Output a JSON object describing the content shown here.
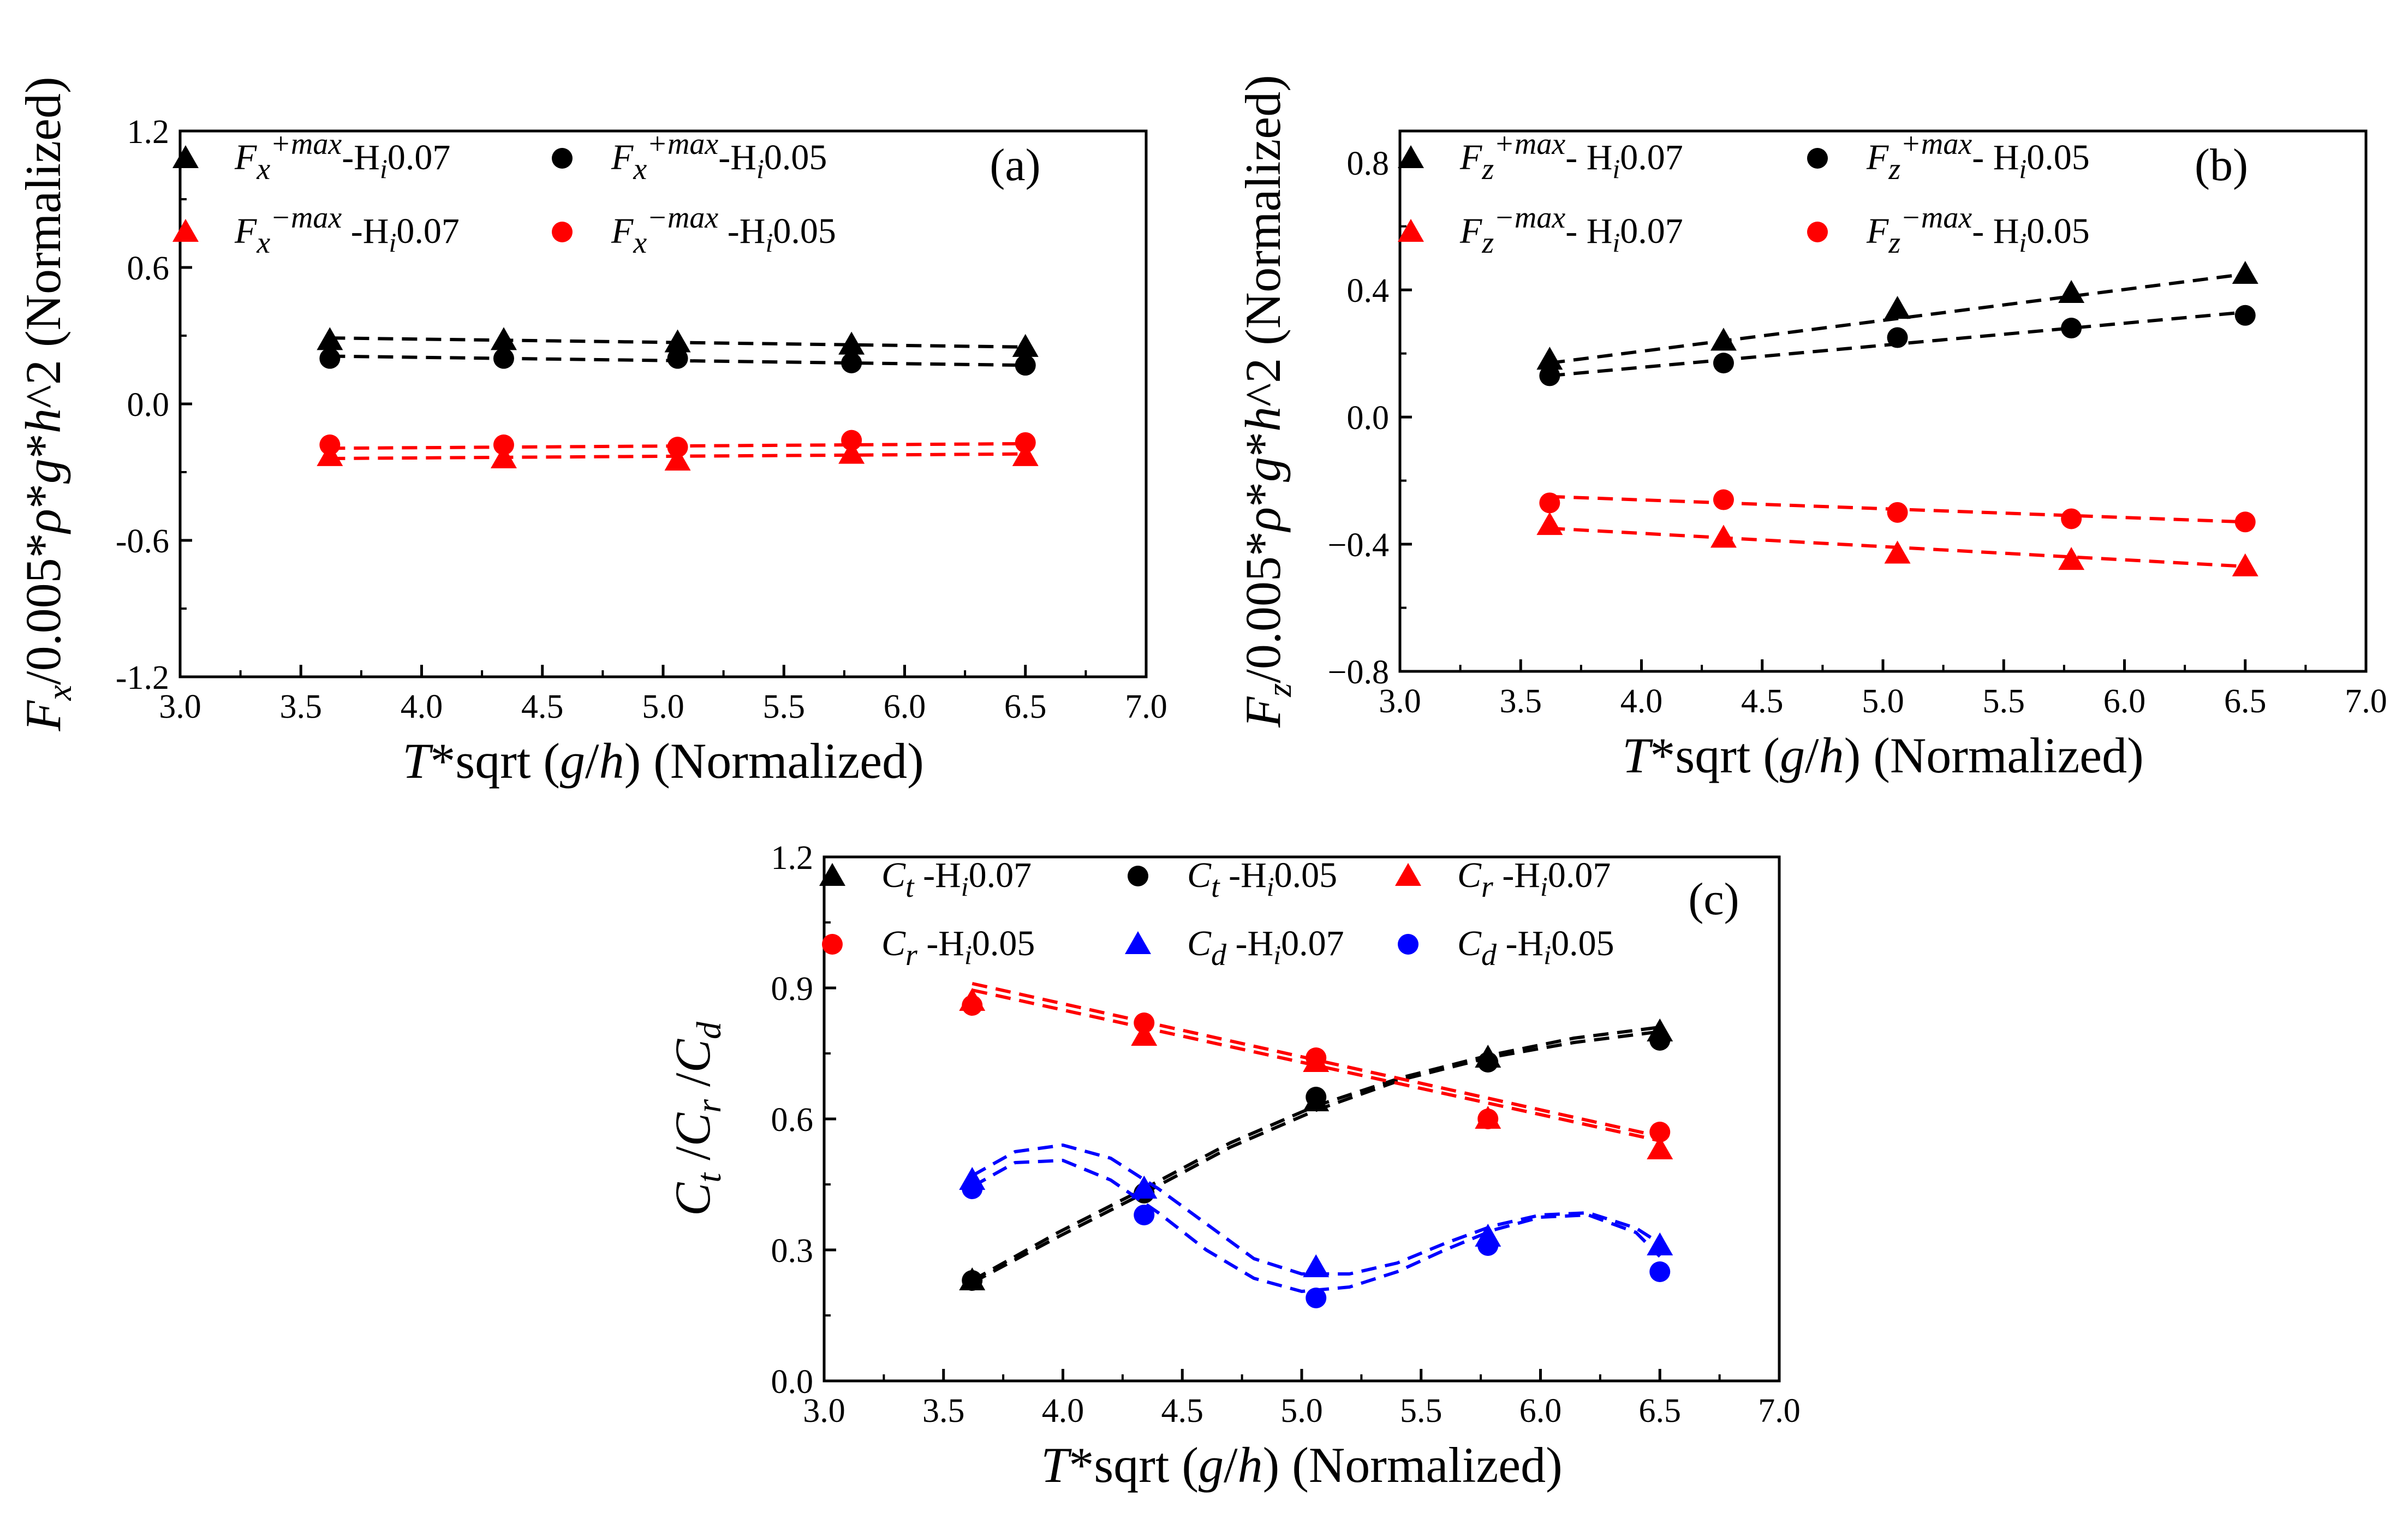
{
  "chart_data": [
    {
      "id": "a",
      "type": "scatter",
      "panel_label": "(a)",
      "xlabel": "T*sqrt (g/h) (Normalized)",
      "ylabel": "Fx/0.005*ρ*g*h^2 (Normalized)",
      "xlim": [
        3.0,
        7.0
      ],
      "ylim": [
        -1.2,
        1.2
      ],
      "xticks": [
        "3.0",
        "3.5",
        "4.0",
        "4.5",
        "5.0",
        "5.5",
        "6.0",
        "6.5",
        "7.0"
      ],
      "yticks": [
        "-1.2",
        "-0.6",
        "0.0",
        "0.6",
        "1.2"
      ],
      "x": [
        3.62,
        4.34,
        5.06,
        5.78,
        6.5
      ],
      "legend_position": "top",
      "series": [
        {
          "name": "Fx+max-Hi0.07",
          "legend": {
            "base": "F",
            "sub": "x",
            "sup": "+max",
            "rest": "-H",
            "hsub": "i",
            "val": "0.07"
          },
          "marker": "triangle",
          "color": "#000000",
          "values": [
            0.28,
            0.28,
            0.27,
            0.26,
            0.25
          ],
          "fit": [
            0.29,
            0.28,
            0.27,
            0.26,
            0.25
          ]
        },
        {
          "name": "Fx+max-Hi0.05",
          "legend": {
            "base": "F",
            "sub": "x",
            "sup": "+max",
            "rest": "-H",
            "hsub": "i",
            "val": "0.05"
          },
          "marker": "circle",
          "color": "#000000",
          "values": [
            0.2,
            0.2,
            0.2,
            0.18,
            0.17
          ],
          "fit": [
            0.21,
            0.2,
            0.19,
            0.18,
            0.17
          ]
        },
        {
          "name": "Fx−max-Hi0.07",
          "legend": {
            "base": "F",
            "sub": "x",
            "sup": "−max",
            "rest": " -H",
            "hsub": "i",
            "val": "0.07"
          },
          "marker": "triangle",
          "color": "#ff0000",
          "values": [
            -0.23,
            -0.24,
            -0.25,
            -0.22,
            -0.23
          ],
          "fit": [
            -0.24,
            -0.235,
            -0.23,
            -0.225,
            -0.22
          ]
        },
        {
          "name": "Fx−max-Hi0.05",
          "legend": {
            "base": "F",
            "sub": "x",
            "sup": "−max",
            "rest": " -H",
            "hsub": "i",
            "val": "0.05"
          },
          "marker": "circle",
          "color": "#ff0000",
          "values": [
            -0.18,
            -0.18,
            -0.19,
            -0.16,
            -0.17
          ],
          "fit": [
            -0.195,
            -0.19,
            -0.185,
            -0.18,
            -0.175
          ]
        }
      ]
    },
    {
      "id": "b",
      "type": "scatter",
      "panel_label": "(b)",
      "xlabel": "T*sqrt (g/h) (Normalized)",
      "ylabel": "Fz/0.005*ρ*g*h^2 (Normalized)",
      "xlim": [
        3.0,
        7.0
      ],
      "ylim": [
        -0.8,
        0.9
      ],
      "xticks": [
        "3.0",
        "3.5",
        "4.0",
        "4.5",
        "5.0",
        "5.5",
        "6.0",
        "6.5",
        "7.0"
      ],
      "yticks": [
        "−0.8",
        "−0.4",
        "0.0",
        "0.4",
        "0.8"
      ],
      "x": [
        3.62,
        4.34,
        5.06,
        5.78,
        6.5
      ],
      "legend_position": "top",
      "series": [
        {
          "name": "Fz+max- Hi0.07",
          "legend": {
            "base": "F",
            "sub": "z",
            "sup": "+max",
            "rest": "- H",
            "hsub": "i",
            "val": "0.07"
          },
          "marker": "triangle",
          "color": "#000000",
          "values": [
            0.18,
            0.24,
            0.34,
            0.39,
            0.45
          ],
          "fit": [
            0.17,
            0.24,
            0.31,
            0.38,
            0.45
          ]
        },
        {
          "name": "Fz+max- Hi0.05",
          "legend": {
            "base": "F",
            "sub": "z",
            "sup": "+max",
            "rest": "- H",
            "hsub": "i",
            "val": "0.05"
          },
          "marker": "circle",
          "color": "#000000",
          "values": [
            0.13,
            0.17,
            0.25,
            0.28,
            0.32
          ],
          "fit": [
            0.13,
            0.18,
            0.23,
            0.28,
            0.33
          ]
        },
        {
          "name": "Fz−max- Hi0.07",
          "legend": {
            "base": "F",
            "sub": "z",
            "sup": "−max",
            "rest": "- H",
            "hsub": "i",
            "val": "0.07"
          },
          "marker": "triangle",
          "color": "#ff0000",
          "values": [
            -0.34,
            -0.38,
            -0.43,
            -0.45,
            -0.47
          ],
          "fit": [
            -0.35,
            -0.38,
            -0.41,
            -0.44,
            -0.47
          ]
        },
        {
          "name": "Fz−max- Hi0.05",
          "legend": {
            "base": "F",
            "sub": "z",
            "sup": "−max",
            "rest": "- H",
            "hsub": "i",
            "val": "0.05"
          },
          "marker": "circle",
          "color": "#ff0000",
          "values": [
            -0.27,
            -0.26,
            -0.3,
            -0.32,
            -0.33
          ],
          "fit": [
            -0.25,
            -0.27,
            -0.29,
            -0.31,
            -0.33
          ]
        }
      ]
    },
    {
      "id": "c",
      "type": "scatter",
      "panel_label": "(c)",
      "xlabel": "T*sqrt (g/h) (Normalized)",
      "ylabel": "Ct /Cr /Cd",
      "xlim": [
        3.0,
        7.0
      ],
      "ylim": [
        0.0,
        1.2
      ],
      "xticks": [
        "3.0",
        "3.5",
        "4.0",
        "4.5",
        "5.0",
        "5.5",
        "6.0",
        "6.5",
        "7.0"
      ],
      "yticks": [
        "0.0",
        "0.3",
        "0.6",
        "0.9",
        "1.2"
      ],
      "x": [
        3.62,
        4.34,
        5.06,
        5.78,
        6.5
      ],
      "legend_position": "top",
      "series": [
        {
          "name": "Ct -Hi0.07",
          "legend": {
            "base": "C",
            "sub": "t",
            "sup": "",
            "rest": " -H",
            "hsub": "i",
            "val": "0.07"
          },
          "marker": "triangle",
          "color": "#000000",
          "values": [
            0.23,
            0.44,
            0.64,
            0.74,
            0.8
          ],
          "fit_x": [
            3.62,
            3.98,
            4.34,
            4.7,
            5.06,
            5.42,
            5.78,
            6.14,
            6.5
          ],
          "fit": [
            0.23,
            0.34,
            0.44,
            0.545,
            0.63,
            0.695,
            0.745,
            0.785,
            0.81
          ]
        },
        {
          "name": "Ct -Hi0.05",
          "legend": {
            "base": "C",
            "sub": "t",
            "sup": "",
            "rest": " -H",
            "hsub": "i",
            "val": "0.05"
          },
          "marker": "circle",
          "color": "#000000",
          "values": [
            0.23,
            0.43,
            0.65,
            0.73,
            0.78
          ],
          "fit_x": [
            3.62,
            3.98,
            4.34,
            4.7,
            5.06,
            5.42,
            5.78,
            6.14,
            6.5
          ],
          "fit": [
            0.225,
            0.33,
            0.43,
            0.535,
            0.62,
            0.69,
            0.74,
            0.775,
            0.8
          ]
        },
        {
          "name": "Cr -Hi0.07",
          "legend": {
            "base": "C",
            "sub": "r",
            "sup": "",
            "rest": " -H",
            "hsub": "i",
            "val": "0.07"
          },
          "marker": "triangle",
          "color": "#ff0000",
          "values": [
            0.87,
            0.79,
            0.73,
            0.6,
            0.53
          ],
          "fit_x": [
            3.62,
            6.5
          ],
          "fit": [
            0.895,
            0.55
          ]
        },
        {
          "name": "Cr -Hi0.05",
          "legend": {
            "base": "C",
            "sub": "r",
            "sup": "",
            "rest": " -H",
            "hsub": "i",
            "val": "0.05"
          },
          "marker": "circle",
          "color": "#ff0000",
          "values": [
            0.86,
            0.82,
            0.74,
            0.6,
            0.57
          ],
          "fit_x": [
            3.62,
            6.5
          ],
          "fit": [
            0.91,
            0.56
          ]
        },
        {
          "name": "Cd -Hi0.07",
          "legend": {
            "base": "C",
            "sub": "d",
            "sup": "",
            "rest": " -H",
            "hsub": "i",
            "val": "0.07"
          },
          "marker": "triangle",
          "color": "#0000ff",
          "values": [
            0.46,
            0.44,
            0.26,
            0.33,
            0.31
          ],
          "fit_x": [
            3.62,
            3.8,
            4.0,
            4.2,
            4.4,
            4.6,
            4.8,
            5.0,
            5.2,
            5.4,
            5.6,
            5.8,
            6.0,
            6.2,
            6.4,
            6.5
          ],
          "fit": [
            0.47,
            0.525,
            0.54,
            0.51,
            0.44,
            0.36,
            0.28,
            0.245,
            0.245,
            0.27,
            0.315,
            0.355,
            0.38,
            0.385,
            0.35,
            0.315
          ]
        },
        {
          "name": "Cd -Hi0.05",
          "legend": {
            "base": "C",
            "sub": "d",
            "sup": "",
            "rest": " -H",
            "hsub": "i",
            "val": "0.05"
          },
          "marker": "circle",
          "color": "#0000ff",
          "values": [
            0.44,
            0.38,
            0.19,
            0.31,
            0.25
          ],
          "fit_x": [
            3.62,
            3.8,
            4.0,
            4.2,
            4.4,
            4.6,
            4.8,
            5.0,
            5.2,
            5.4,
            5.6,
            5.8,
            6.0,
            6.2,
            6.4,
            6.5
          ],
          "fit": [
            0.445,
            0.5,
            0.505,
            0.46,
            0.385,
            0.3,
            0.235,
            0.205,
            0.215,
            0.25,
            0.3,
            0.345,
            0.375,
            0.38,
            0.34,
            0.285
          ]
        }
      ]
    }
  ]
}
